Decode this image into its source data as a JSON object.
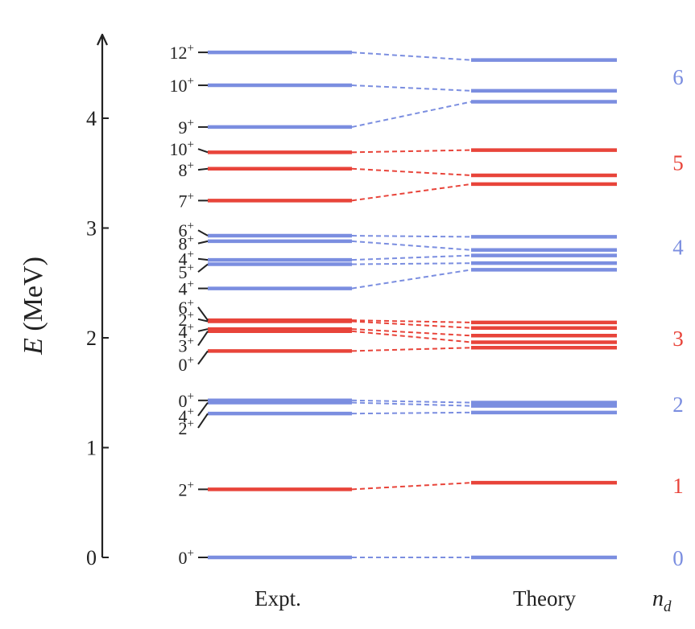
{
  "chart_data": {
    "type": "level-scheme",
    "ylabel": {
      "italic": "E",
      "rest": " (MeV)"
    },
    "ylim": [
      0,
      4.7
    ],
    "yticks": [
      "0",
      "1",
      "2",
      "3",
      "4"
    ],
    "columns": {
      "expt": "Expt.",
      "theory": "Theory",
      "nd_label": "n",
      "nd_sub": "d"
    },
    "colors": {
      "blue": "#7b8ee0",
      "red": "#e8443a",
      "text": "#222222"
    },
    "bands": [
      {
        "nd": "0",
        "color": "blue",
        "label_e": 0.0
      },
      {
        "nd": "1",
        "color": "red",
        "label_e": 0.66
      },
      {
        "nd": "2",
        "color": "blue",
        "label_e": 1.4
      },
      {
        "nd": "3",
        "color": "red",
        "label_e": 2.0
      },
      {
        "nd": "4",
        "color": "blue",
        "label_e": 2.83
      },
      {
        "nd": "5",
        "color": "red",
        "label_e": 3.6
      },
      {
        "nd": "6",
        "color": "blue",
        "label_e": 4.38
      }
    ],
    "levels": [
      {
        "J": "0",
        "color": "blue",
        "expt": 0.0,
        "theory": 0.0,
        "label_e": 0.0
      },
      {
        "J": "2",
        "color": "red",
        "expt": 0.62,
        "theory": 0.68,
        "label_e": 0.62
      },
      {
        "J": "2",
        "color": "blue",
        "expt": 1.31,
        "theory": 1.32,
        "label_e": 1.18
      },
      {
        "J": "4",
        "color": "blue",
        "expt": 1.41,
        "theory": 1.38,
        "label_e": 1.29
      },
      {
        "J": "0",
        "color": "blue",
        "expt": 1.43,
        "theory": 1.41,
        "label_e": 1.43
      },
      {
        "J": "0",
        "color": "red",
        "expt": 1.88,
        "theory": 1.91,
        "label_e": 1.76
      },
      {
        "J": "3",
        "color": "red",
        "expt": 2.06,
        "theory": 1.96,
        "label_e": 1.93
      },
      {
        "J": "4",
        "color": "red",
        "expt": 2.08,
        "theory": 2.02,
        "label_e": 2.06
      },
      {
        "J": "2",
        "color": "red",
        "expt": 2.15,
        "theory": 2.09,
        "label_e": 2.17
      },
      {
        "J": "6",
        "color": "red",
        "expt": 2.16,
        "theory": 2.14,
        "label_e": 2.28
      },
      {
        "J": "4",
        "color": "blue",
        "expt": 2.45,
        "theory": 2.62,
        "label_e": 2.45
      },
      {
        "J": "5",
        "color": "blue",
        "expt": 2.67,
        "theory": 2.68,
        "label_e": 2.6
      },
      {
        "J": "4",
        "color": "blue",
        "expt": 2.71,
        "theory": 2.75,
        "label_e": 2.72
      },
      {
        "J": "8",
        "color": "blue",
        "expt": 2.88,
        "theory": 2.8,
        "label_e": 2.86
      },
      {
        "J": "6",
        "color": "blue",
        "expt": 2.93,
        "theory": 2.92,
        "label_e": 2.98
      },
      {
        "J": "7",
        "color": "red",
        "expt": 3.25,
        "theory": 3.4,
        "label_e": 3.25
      },
      {
        "J": "8",
        "color": "red",
        "expt": 3.54,
        "theory": 3.48,
        "label_e": 3.53
      },
      {
        "J": "10",
        "color": "red",
        "expt": 3.69,
        "theory": 3.71,
        "label_e": 3.72
      },
      {
        "J": "9",
        "color": "blue",
        "expt": 3.92,
        "theory": 4.15,
        "label_e": 3.92
      },
      {
        "J": "10",
        "color": "blue",
        "expt": 4.3,
        "theory": 4.25,
        "label_e": 4.3
      },
      {
        "J": "12",
        "color": "blue",
        "expt": 4.6,
        "theory": 4.53,
        "label_e": 4.6
      }
    ]
  }
}
